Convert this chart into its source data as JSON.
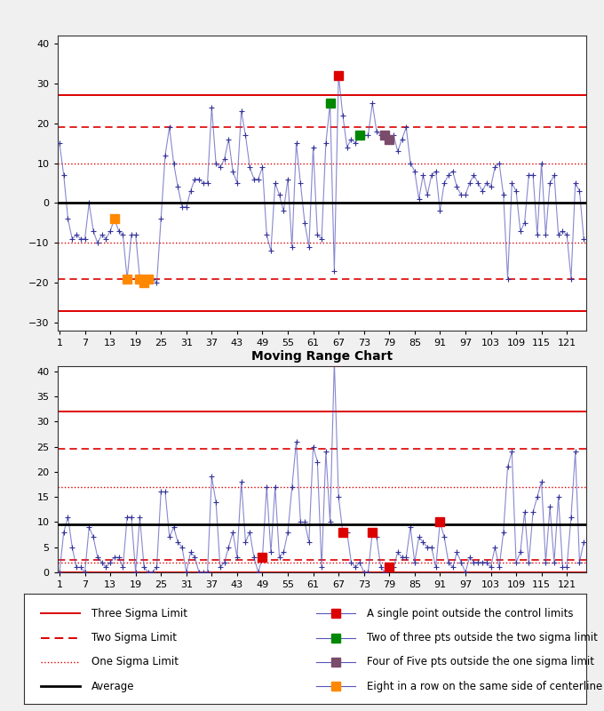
{
  "title2": "Moving Range Chart",
  "n_points": 125,
  "avg": 0,
  "ucl1": 27,
  "lcl1": -27,
  "u2sigma": 19,
  "l2sigma": -19,
  "u1sigma": 10,
  "l1sigma": -10,
  "mr_avg": 9.5,
  "mr_ucl": 32,
  "mr_u2sigma": 24.5,
  "mr_l2sigma": 2.5,
  "mr_u1sigma": 17,
  "mr_l1sigma": 2,
  "x_ticks": [
    1,
    7,
    13,
    19,
    25,
    31,
    37,
    43,
    49,
    55,
    61,
    67,
    73,
    79,
    85,
    91,
    97,
    103,
    109,
    115,
    121
  ],
  "ylim1": [
    -32,
    42
  ],
  "ylim2": [
    0,
    41
  ],
  "yticks1": [
    -30,
    -20,
    -10,
    0,
    10,
    20,
    30,
    40
  ],
  "yticks2": [
    0,
    5,
    10,
    15,
    20,
    25,
    30,
    35,
    40
  ],
  "line_color": "#5555bb",
  "marker_color": "#333399",
  "avg_color": "#000000",
  "three_sigma_color": "#dd0000",
  "two_sigma_color": "#dd0000",
  "one_sigma_color": "#dd0000",
  "red_marker": "#dd0000",
  "green_marker": "#008800",
  "purple_marker": "#7B4B6B",
  "orange_marker": "#FF8800",
  "bg_color": "#f0f0f0",
  "chart_bg": "#ffffff",
  "legend_fontsize": 8.5,
  "axis_fontsize": 8,
  "title_fontsize": 10,
  "values": [
    15,
    7,
    -4,
    -9,
    -8,
    -9,
    -9,
    0,
    -7,
    -10,
    -8,
    -9,
    -7,
    -4,
    -7,
    -8,
    -19,
    -8,
    -8,
    -19,
    -20,
    -19,
    -19,
    -20,
    -4,
    12,
    19,
    10,
    4,
    -1,
    -1,
    3,
    6,
    6,
    5,
    5,
    24,
    10,
    9,
    11,
    16,
    8,
    5,
    23,
    17,
    9,
    6,
    6,
    9,
    -8,
    -12,
    5,
    2,
    -2,
    6,
    -11,
    15,
    5,
    -5,
    -11,
    14,
    -8,
    -9,
    15,
    25,
    -17,
    32,
    22,
    14,
    16,
    15,
    17,
    17,
    17,
    25,
    18,
    17,
    17,
    16,
    17,
    13,
    16,
    19,
    10,
    8,
    1,
    7,
    2,
    7,
    8,
    -2,
    5,
    7,
    8,
    4,
    2,
    2,
    5,
    7,
    5,
    3,
    5,
    4,
    9,
    10,
    2,
    -19,
    5,
    3,
    -7,
    -5,
    7,
    7,
    -8,
    10,
    -8,
    5,
    7,
    -8,
    -7,
    -8,
    -19,
    5,
    3,
    -9
  ],
  "special_red": [
    67
  ],
  "special_green": [
    65,
    72
  ],
  "special_purple": [
    78,
    79
  ],
  "special_orange": [
    14,
    17,
    20,
    21,
    22
  ],
  "mr_values": [
    0,
    8,
    11,
    5,
    1,
    1,
    0,
    9,
    7,
    3,
    2,
    1,
    2,
    3,
    3,
    1,
    11,
    11,
    0,
    11,
    1,
    0,
    0,
    1,
    16,
    16,
    7,
    9,
    6,
    5,
    0,
    4,
    3,
    0,
    0,
    0,
    19,
    14,
    1,
    2,
    5,
    8,
    3,
    18,
    6,
    8,
    3,
    0,
    3,
    17,
    4,
    17,
    3,
    4,
    8,
    17,
    26,
    10,
    10,
    6,
    25,
    22,
    1,
    24,
    10,
    42,
    15,
    8,
    8,
    2,
    1,
    2,
    0,
    0,
    8,
    7,
    1,
    0,
    1,
    1,
    4,
    3,
    3,
    9,
    2,
    7,
    6,
    5,
    5,
    1,
    10,
    7,
    2,
    1,
    4,
    2,
    0,
    3,
    2,
    2,
    2,
    2,
    1,
    5,
    1,
    8,
    21,
    24,
    2,
    4,
    12,
    2,
    12,
    15,
    18,
    2,
    13,
    2,
    15,
    1,
    1,
    11,
    24,
    2,
    6
  ],
  "mr_red": [
    49,
    66,
    68,
    75,
    79,
    91
  ],
  "mr_green": [],
  "mr_purple": [],
  "mr_orange": []
}
